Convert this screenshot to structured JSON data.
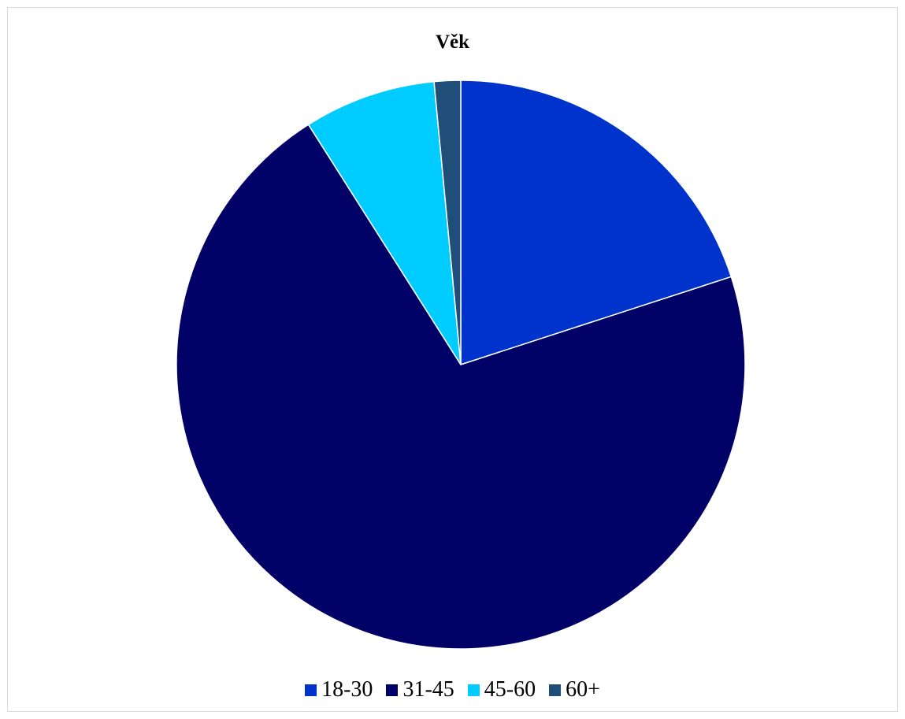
{
  "chart_data": {
    "type": "pie",
    "title": "Věk",
    "categories": [
      "18-30",
      "31-45",
      "45-60",
      "60+"
    ],
    "values": [
      20,
      71,
      7.5,
      1.5
    ],
    "colors": [
      "#0033cc",
      "#000066",
      "#00ccff",
      "#1f4e79"
    ],
    "start_angle": "12 o'clock",
    "direction": "clockwise",
    "legend_position": "bottom"
  }
}
